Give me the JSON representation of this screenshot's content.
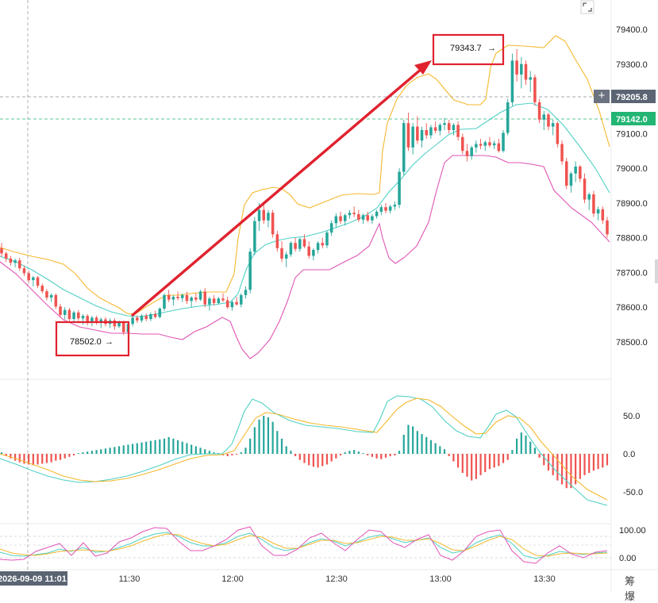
{
  "chart_data": {
    "type": "candlestick",
    "symbol_panels": [
      "price",
      "macd",
      "kdj"
    ],
    "price_axis": {
      "ticks": [
        "79400.0",
        "79300.0",
        "79100.0",
        "79000.0",
        "78900.0",
        "78800.0",
        "78700.0",
        "78600.0",
        "78500.0"
      ],
      "range": [
        78450,
        79440
      ]
    },
    "time_axis": {
      "current_label": "2026-09-09 11:01",
      "ticks": [
        "11:30",
        "12:00",
        "12:30",
        "13:00",
        "13:30"
      ]
    },
    "crosshair_price": "79205.8",
    "last_price": "79142.0",
    "annotations": {
      "low_label": "78502.0",
      "high_label": "79343.7"
    },
    "macd_axis": {
      "ticks": [
        "50.0",
        "0.0",
        "-50.0"
      ]
    },
    "kdj_axis": {
      "ticks": [
        "100.00",
        "0.00"
      ]
    },
    "colors": {
      "up": "#26a69a",
      "down": "#ef5350",
      "boll_upper": "#f5b82e",
      "boll_mid": "#4fd1c5",
      "boll_lower": "#e055b5",
      "arrow": "#e0222f",
      "last_price": "#22b573",
      "crosshair_badge": "#5b6472"
    },
    "candles_ohlc": [
      [
        78770,
        78785,
        78745,
        78755
      ],
      [
        78755,
        78760,
        78730,
        78740
      ],
      [
        78740,
        78748,
        78720,
        78728
      ],
      [
        78728,
        78740,
        78715,
        78735
      ],
      [
        78735,
        78742,
        78705,
        78712
      ],
      [
        78712,
        78720,
        78690,
        78698
      ],
      [
        78698,
        78705,
        78670,
        78678
      ],
      [
        78678,
        78690,
        78660,
        78686
      ],
      [
        78686,
        78690,
        78655,
        78662
      ],
      [
        78662,
        78668,
        78640,
        78646
      ],
      [
        78646,
        78652,
        78620,
        78628
      ],
      [
        78628,
        78640,
        78615,
        78635
      ],
      [
        78635,
        78640,
        78595,
        78602
      ],
      [
        78602,
        78610,
        78570,
        78578
      ],
      [
        78578,
        78600,
        78565,
        78592
      ],
      [
        78592,
        78598,
        78560,
        78566
      ],
      [
        78566,
        78590,
        78555,
        78585
      ],
      [
        78585,
        78592,
        78560,
        78568
      ],
      [
        78568,
        78580,
        78550,
        78575
      ],
      [
        78575,
        78580,
        78548,
        78556
      ],
      [
        78556,
        78575,
        78545,
        78570
      ],
      [
        78570,
        78576,
        78550,
        78558
      ],
      [
        78558,
        78570,
        78540,
        78565
      ],
      [
        78565,
        78572,
        78545,
        78552
      ],
      [
        78552,
        78568,
        78540,
        78562
      ],
      [
        78562,
        78568,
        78535,
        78545
      ],
      [
        78545,
        78562,
        78540,
        78558
      ],
      [
        78558,
        78562,
        78520,
        78528
      ],
      [
        78528,
        78560,
        78502,
        78552
      ],
      [
        78552,
        78575,
        78545,
        78570
      ],
      [
        78570,
        78576,
        78555,
        78562
      ],
      [
        78562,
        78580,
        78556,
        78575
      ],
      [
        78575,
        78582,
        78560,
        78566
      ],
      [
        78566,
        78585,
        78560,
        78580
      ],
      [
        78580,
        78590,
        78568,
        78572
      ],
      [
        78572,
        78600,
        78568,
        78596
      ],
      [
        78596,
        78640,
        78590,
        78635
      ],
      [
        78635,
        78650,
        78615,
        78622
      ],
      [
        78622,
        78635,
        78605,
        78630
      ],
      [
        78630,
        78645,
        78620,
        78626
      ],
      [
        78626,
        78640,
        78615,
        78635
      ],
      [
        78635,
        78645,
        78610,
        78618
      ],
      [
        78618,
        78632,
        78600,
        78628
      ],
      [
        78628,
        78640,
        78615,
        78622
      ],
      [
        78622,
        78650,
        78618,
        78645
      ],
      [
        78645,
        78655,
        78600,
        78608
      ],
      [
        78608,
        78630,
        78590,
        78625
      ],
      [
        78625,
        78635,
        78605,
        78612
      ],
      [
        78612,
        78630,
        78608,
        78625
      ],
      [
        78625,
        78640,
        78615,
        78620
      ],
      [
        78620,
        78630,
        78595,
        78600
      ],
      [
        78600,
        78620,
        78590,
        78615
      ],
      [
        78615,
        78630,
        78605,
        78608
      ],
      [
        78608,
        78640,
        78600,
        78635
      ],
      [
        78635,
        78660,
        78625,
        78650
      ],
      [
        78650,
        78770,
        78640,
        78760
      ],
      [
        78760,
        78860,
        78750,
        78848
      ],
      [
        78848,
        78900,
        78820,
        78880
      ],
      [
        78880,
        78905,
        78840,
        78850
      ],
      [
        78850,
        78880,
        78830,
        78872
      ],
      [
        78872,
        78880,
        78800,
        78810
      ],
      [
        78810,
        78820,
        78760,
        78770
      ],
      [
        78770,
        78790,
        78730,
        78740
      ],
      [
        78740,
        78760,
        78715,
        78752
      ],
      [
        78752,
        78790,
        78745,
        78785
      ],
      [
        78785,
        78800,
        78760,
        78768
      ],
      [
        78768,
        78800,
        78760,
        78796
      ],
      [
        78796,
        78810,
        78770,
        78775
      ],
      [
        78775,
        78790,
        78740,
        78748
      ],
      [
        78748,
        78770,
        78735,
        78765
      ],
      [
        78765,
        78790,
        78755,
        78785
      ],
      [
        78785,
        78800,
        78770,
        78778
      ],
      [
        78778,
        78820,
        78770,
        78815
      ],
      [
        78815,
        78850,
        78805,
        78842
      ],
      [
        78842,
        78870,
        78830,
        78862
      ],
      [
        78862,
        78875,
        78840,
        78848
      ],
      [
        78848,
        78870,
        78835,
        78865
      ],
      [
        78865,
        78880,
        78855,
        78872
      ],
      [
        78872,
        78890,
        78860,
        78868
      ],
      [
        78868,
        78880,
        78845,
        78852
      ],
      [
        78852,
        78870,
        78840,
        78865
      ],
      [
        78865,
        78875,
        78845,
        78850
      ],
      [
        78850,
        78868,
        78840,
        78862
      ],
      [
        78862,
        78880,
        78855,
        78875
      ],
      [
        78875,
        78895,
        78865,
        78888
      ],
      [
        78888,
        78900,
        78870,
        78878
      ],
      [
        78878,
        78895,
        78870,
        78890
      ],
      [
        78890,
        78905,
        78880,
        78895
      ],
      [
        78895,
        79000,
        78885,
        78990
      ],
      [
        78990,
        79140,
        78980,
        79130
      ],
      [
        79130,
        79160,
        79050,
        79060
      ],
      [
        79060,
        79130,
        79040,
        79120
      ],
      [
        79120,
        79150,
        79070,
        79080
      ],
      [
        79080,
        79120,
        79060,
        79110
      ],
      [
        79110,
        79130,
        79085,
        79095
      ],
      [
        79095,
        79125,
        79085,
        79118
      ],
      [
        79118,
        79135,
        79100,
        79108
      ],
      [
        79108,
        79130,
        79095,
        79125
      ],
      [
        79125,
        79145,
        79110,
        79130
      ],
      [
        79130,
        79140,
        79100,
        79110
      ],
      [
        79110,
        79130,
        79095,
        79125
      ],
      [
        79125,
        79135,
        79080,
        79090
      ],
      [
        79090,
        79100,
        79040,
        79050
      ],
      [
        79050,
        79070,
        79020,
        79035
      ],
      [
        79035,
        79065,
        79025,
        79060
      ],
      [
        79060,
        79080,
        79045,
        79070
      ],
      [
        79070,
        79085,
        79055,
        79065
      ],
      [
        79065,
        79080,
        79050,
        79075
      ],
      [
        79075,
        79090,
        79060,
        79066
      ],
      [
        79066,
        79080,
        79055,
        79072
      ],
      [
        79072,
        79085,
        79045,
        79050
      ],
      [
        79050,
        79110,
        79045,
        79102
      ],
      [
        79102,
        79200,
        79095,
        79190
      ],
      [
        79190,
        79330,
        79180,
        79310
      ],
      [
        79310,
        79343,
        79250,
        79270
      ],
      [
        79270,
        79320,
        79230,
        79300
      ],
      [
        79300,
        79310,
        79240,
        79255
      ],
      [
        79255,
        79280,
        79220,
        79262
      ],
      [
        79262,
        79270,
        79180,
        79190
      ],
      [
        79190,
        79200,
        79130,
        79140
      ],
      [
        79140,
        79165,
        79110,
        79155
      ],
      [
        79155,
        79160,
        79110,
        79120
      ],
      [
        79120,
        79140,
        79095,
        79130
      ],
      [
        79130,
        79135,
        79060,
        79070
      ],
      [
        79070,
        79080,
        79010,
        79020
      ],
      [
        79020,
        79030,
        78940,
        78950
      ],
      [
        78950,
        78990,
        78930,
        78985
      ],
      [
        78985,
        79020,
        78960,
        79005
      ],
      [
        79005,
        79010,
        78960,
        78970
      ],
      [
        78970,
        78985,
        78900,
        78910
      ],
      [
        78910,
        78930,
        78880,
        78925
      ],
      [
        78925,
        78935,
        78860,
        78870
      ],
      [
        78870,
        78890,
        78850,
        78882
      ],
      [
        78882,
        78890,
        78840,
        78850
      ],
      [
        78850,
        78860,
        78800,
        78810
      ]
    ],
    "macd_hist": [
      2,
      -3,
      -6,
      -9,
      -11,
      -13,
      -14,
      -15,
      -14,
      -13,
      -12,
      -11,
      -9,
      -8,
      -6,
      -4,
      -2,
      1,
      2,
      3,
      4,
      5,
      6,
      7,
      8,
      9,
      10,
      11,
      12,
      13,
      14,
      15,
      16,
      17,
      18,
      19,
      20,
      22,
      20,
      18,
      16,
      14,
      12,
      10,
      8,
      6,
      4,
      2,
      1,
      -2,
      -3,
      -2,
      -1,
      2,
      8,
      20,
      35,
      45,
      50,
      48,
      42,
      30,
      20,
      10,
      4,
      -3,
      -8,
      -12,
      -15,
      -17,
      -18,
      -16,
      -14,
      -10,
      -6,
      -2,
      2,
      4,
      5,
      3,
      1,
      -2,
      -4,
      -6,
      -7,
      -5,
      -3,
      -2,
      4,
      25,
      38,
      36,
      30,
      26,
      22,
      18,
      14,
      10,
      6,
      -3,
      -10,
      -18,
      -25,
      -30,
      -35,
      -33,
      -28,
      -24,
      -20,
      -18,
      -16,
      -12,
      -8,
      5,
      20,
      28,
      24,
      16,
      8,
      -5,
      -15,
      -22,
      -28,
      -35,
      -40,
      -45,
      -45,
      -40,
      -33,
      -28,
      -25,
      -22,
      -20,
      -18,
      -15
    ]
  }
}
